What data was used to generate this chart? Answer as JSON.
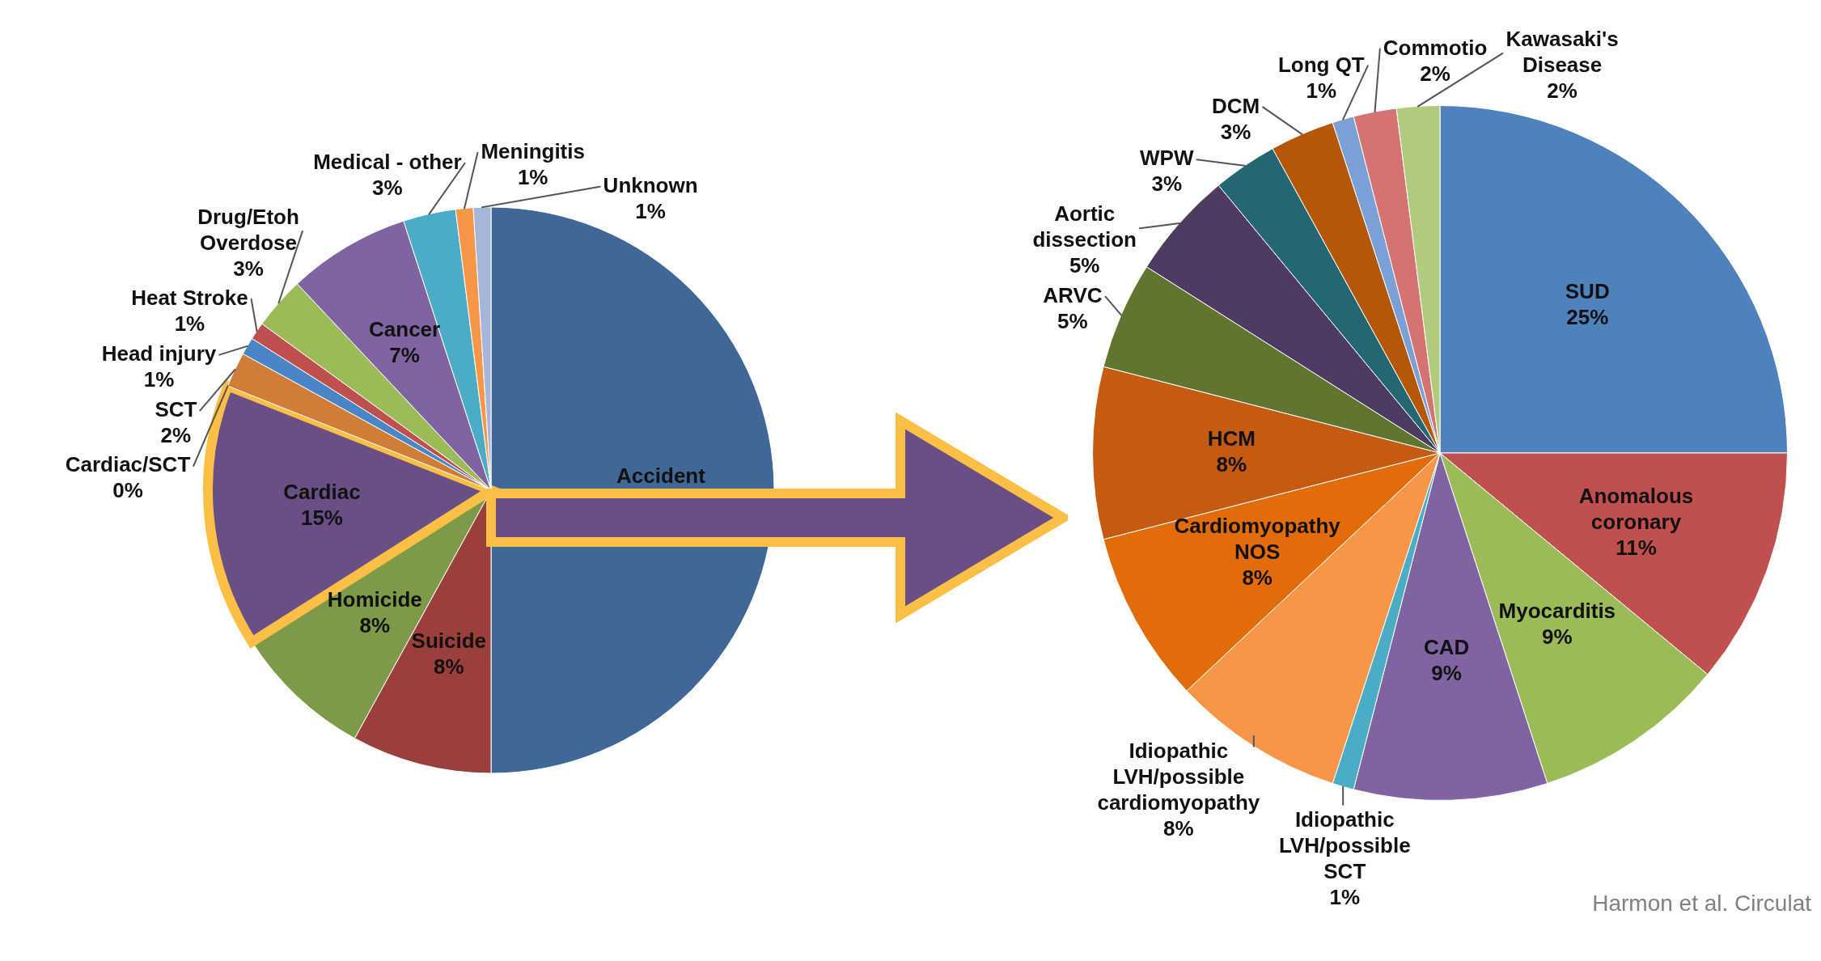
{
  "chart_data": [
    {
      "type": "pie",
      "categories": [
        "Accident",
        "Suicide",
        "Homicide",
        "Cardiac",
        "Cardiac/SCT",
        "SCT",
        "Head injury",
        "Heat Stroke",
        "Drug/Etoh Overdose",
        "Cancer",
        "Medical - other",
        "Meningitis",
        "Unknown"
      ],
      "values": [
        50,
        8,
        8,
        15,
        0,
        2,
        1,
        1,
        3,
        7,
        3,
        1,
        1
      ],
      "value_labels": [
        null,
        "8%",
        "8%",
        "15%",
        "0%",
        "2%",
        "1%",
        "1%",
        "3%",
        "7%",
        "3%",
        "1%",
        "1%"
      ],
      "colors": [
        "#3f6897",
        "#9b3f3d",
        "#7d9a49",
        "#694f86",
        "#7a5f99",
        "#d07d38",
        "#4a86c5",
        "#c0504d",
        "#9bbb59",
        "#8064a2",
        "#4bacc6",
        "#f79646",
        "#a5b6d8"
      ]
    },
    {
      "type": "pie",
      "categories": [
        "SUD",
        "Anomalous coronary",
        "Myocarditis",
        "CAD",
        "Idiopathic LVH/possible SCT",
        "Idiopathic LVH/possible cardiomyopathy",
        "Cardiomyopathy NOS",
        "HCM",
        "ARVC",
        "Aortic dissection",
        "WPW",
        "DCM",
        "Long QT",
        "Commotio",
        "Kawasaki's Disease"
      ],
      "values": [
        25,
        11,
        9,
        9,
        1,
        8,
        8,
        8,
        5,
        5,
        3,
        3,
        1,
        2,
        2
      ],
      "value_labels": [
        "25%",
        "11%",
        "9%",
        "9%",
        "1%",
        "8%",
        "8%",
        "8%",
        "5%",
        "5%",
        "3%",
        "3%",
        "1%",
        "2%",
        "2%"
      ],
      "colors": [
        "#4f81bd",
        "#c0504d",
        "#9bbb59",
        "#8064a2",
        "#4bacc6",
        "#f79646",
        "#e36c0a",
        "#c55a11",
        "#5f7530",
        "#4d3b62",
        "#246674",
        "#b65708",
        "#7ba0d5",
        "#d47371",
        "#b0cb7e"
      ],
      "annotations": [
        "Harmon et al. Circulat"
      ]
    }
  ]
}
